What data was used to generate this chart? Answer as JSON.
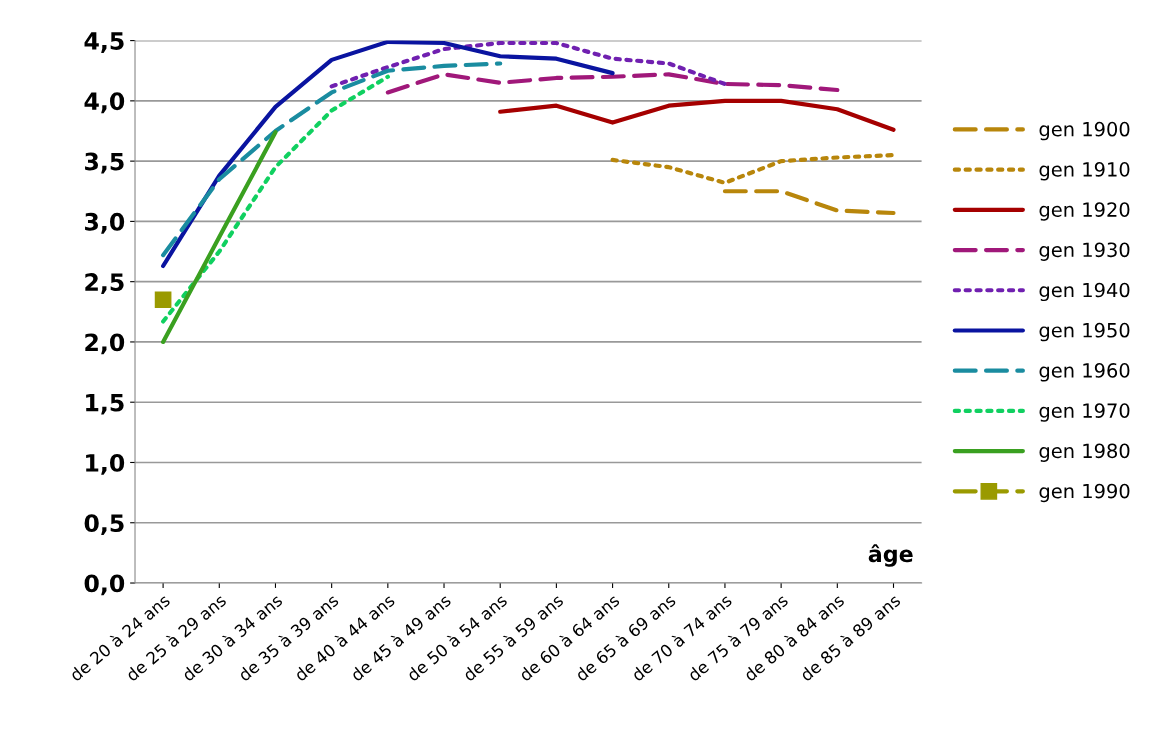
{
  "chart_data": {
    "type": "line",
    "xlabel": "âge",
    "categories": [
      "de 20 à 24 ans",
      "de 25 à 29 ans",
      "de 30 à 34 ans",
      "de 35 à 39 ans",
      "de 40 à 44 ans",
      "de 45 à 49 ans",
      "de 50 à 54 ans",
      "de 55 à 59 ans",
      "de 60 à 64 ans",
      "de 65 à 69 ans",
      "de 70 à 74 ans",
      "de 75 à 79 ans",
      "de 80 à 84 ans",
      "de 85 à 89 ans"
    ],
    "ylim": [
      0,
      4.5
    ],
    "yticks": [
      {
        "value": 0,
        "label": "0,0"
      },
      {
        "value": 0.5,
        "label": "0,5"
      },
      {
        "value": 1,
        "label": "1,0"
      },
      {
        "value": 1.5,
        "label": "1,5"
      },
      {
        "value": 2,
        "label": "2,0"
      },
      {
        "value": 2.5,
        "label": "2,5"
      },
      {
        "value": 3,
        "label": "3,0"
      },
      {
        "value": 3.5,
        "label": "3,5"
      },
      {
        "value": 4,
        "label": "4,0"
      },
      {
        "value": 4.5,
        "label": "4,5"
      }
    ],
    "grid": "y",
    "legend": "right",
    "series": [
      {
        "name": "gen 1900",
        "color": "#b8860b",
        "line_style": "dashed",
        "values": [
          null,
          null,
          null,
          null,
          null,
          null,
          null,
          null,
          null,
          null,
          3.25,
          3.25,
          3.09,
          3.07
        ]
      },
      {
        "name": "gen 1910",
        "color": "#b8860b",
        "line_style": "dotted",
        "values": [
          null,
          null,
          null,
          null,
          null,
          null,
          null,
          null,
          3.51,
          3.45,
          3.32,
          3.5,
          3.53,
          3.55
        ]
      },
      {
        "name": "gen 1920",
        "color": "#a50000",
        "line_style": "solid",
        "values": [
          null,
          null,
          null,
          null,
          null,
          null,
          3.91,
          3.96,
          3.82,
          3.96,
          4.0,
          4.0,
          3.93,
          3.76
        ]
      },
      {
        "name": "gen 1930",
        "color": "#a0187a",
        "line_style": "dashed",
        "values": [
          null,
          null,
          null,
          null,
          4.07,
          4.22,
          4.15,
          4.19,
          4.2,
          4.22,
          4.14,
          4.13,
          4.09,
          null
        ]
      },
      {
        "name": "gen 1940",
        "color": "#7020b0",
        "line_style": "dotted",
        "values": [
          null,
          null,
          null,
          4.12,
          4.28,
          4.43,
          4.48,
          4.48,
          4.35,
          4.31,
          4.14,
          null,
          null,
          null
        ]
      },
      {
        "name": "gen 1950",
        "color": "#0a14a0",
        "line_style": "solid",
        "values": [
          2.63,
          3.38,
          3.95,
          4.34,
          4.49,
          4.48,
          4.37,
          4.35,
          4.23,
          null,
          null,
          null,
          null,
          null
        ]
      },
      {
        "name": "gen 1960",
        "color": "#1a8ca0",
        "line_style": "dashed",
        "values": [
          2.72,
          3.35,
          3.75,
          4.07,
          4.25,
          4.29,
          4.31,
          null,
          null,
          null,
          null,
          null,
          null,
          null
        ]
      },
      {
        "name": "gen 1970",
        "color": "#10d060",
        "line_style": "dotted",
        "values": [
          2.17,
          2.75,
          3.45,
          3.92,
          4.2,
          null,
          null,
          null,
          null,
          null,
          null,
          null,
          null,
          null
        ]
      },
      {
        "name": "gen 1980",
        "color": "#3aa020",
        "line_style": "solid",
        "values": [
          2.0,
          2.87,
          3.74,
          null,
          null,
          null,
          null,
          null,
          null,
          null,
          null,
          null,
          null,
          null
        ]
      },
      {
        "name": "gen 1990",
        "color": "#9a9a00",
        "line_style": "dashed",
        "marker": "square",
        "values": [
          2.35,
          null,
          null,
          null,
          null,
          null,
          null,
          null,
          null,
          null,
          null,
          null,
          null,
          null
        ]
      }
    ]
  }
}
